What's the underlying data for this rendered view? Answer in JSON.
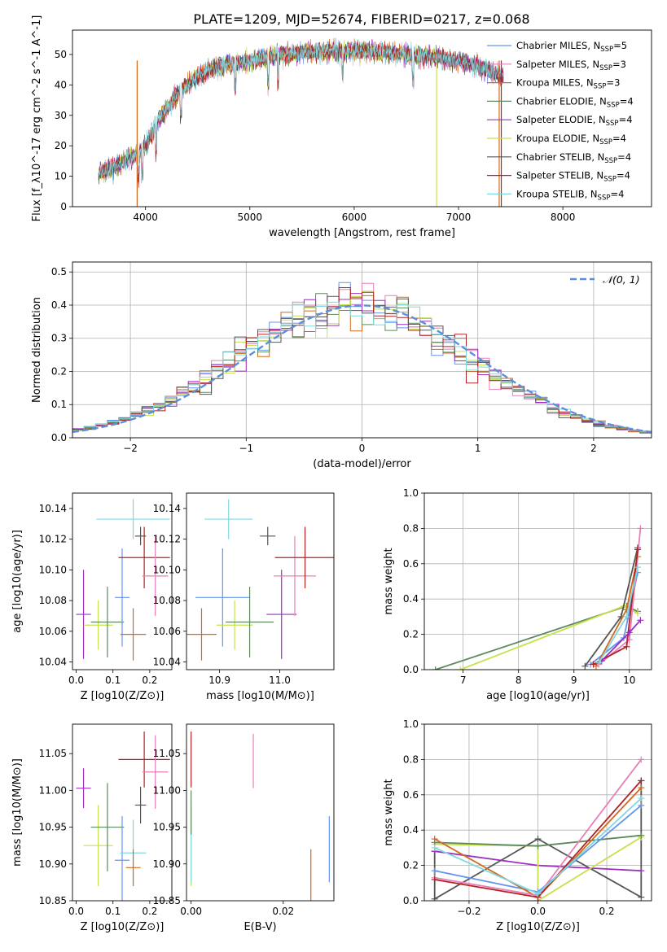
{
  "figure_title": "PLATE=1209, MJD=52674, FIBERID=0217, z=0.068",
  "legend_spectrum": [
    {
      "name": "Chabrier MILES, N",
      "sub": "SSP",
      "tail": "=5",
      "color": "#6495ED"
    },
    {
      "name": "Salpeter MILES, N",
      "sub": "SSP",
      "tail": "=3",
      "color": "#E87FB8"
    },
    {
      "name": "Kroupa MILES, N",
      "sub": "SSP",
      "tail": "=3",
      "color": "#D2691E"
    },
    {
      "name": "Chabrier ELODIE, N",
      "sub": "SSP",
      "tail": "=4",
      "color": "#5C8A5C"
    },
    {
      "name": "Salpeter ELODIE, N",
      "sub": "SSP",
      "tail": "=4",
      "color": "#9B30C0"
    },
    {
      "name": "Kroupa ELODIE, N",
      "sub": "SSP",
      "tail": "=4",
      "color": "#C8E04A"
    },
    {
      "name": "Chabrier STELIB, N",
      "sub": "SSP",
      "tail": "=4",
      "color": "#555555"
    },
    {
      "name": "Salpeter STELIB, N",
      "sub": "SSP",
      "tail": "=4",
      "color": "#B22222"
    },
    {
      "name": "Kroupa STELIB, N",
      "sub": "SSP",
      "tail": "=4",
      "color": "#7FD8E0"
    }
  ],
  "legend_hist": "𝒩(0, 1)",
  "chart_data": [
    {
      "id": "spectrum",
      "type": "line",
      "xlabel": "wavelength [Angstrom, rest frame]",
      "ylabel": "Flux [f_λ10^-17 erg cm^-2 s^-1 A^-1]",
      "xlim": [
        3300,
        8850
      ],
      "ylim": [
        0,
        58
      ],
      "xticks": [
        4000,
        5000,
        6000,
        7000,
        8000
      ],
      "yticks": [
        0,
        10,
        20,
        30,
        40,
        50
      ],
      "continuum_x": [
        3550,
        3700,
        3800,
        3900,
        4000,
        4100,
        4200,
        4300,
        4500,
        4700,
        5000,
        5300,
        5600,
        5900,
        6200,
        6500,
        6800,
        7000,
        7200,
        7400
      ],
      "continuum_y": [
        11,
        13,
        15,
        17,
        20,
        27,
        32,
        37,
        43,
        46,
        48,
        50,
        51,
        51,
        51,
        50,
        49,
        48,
        46,
        43
      ]
    },
    {
      "id": "residual_hist",
      "type": "step",
      "xlabel": "(data-model)/error",
      "ylabel": "Normed distribution",
      "xlim": [
        -2.5,
        2.5
      ],
      "ylim": [
        0,
        0.53
      ],
      "xticks": [
        -2,
        -1,
        0,
        1,
        2
      ],
      "yticks": [
        0.0,
        0.1,
        0.2,
        0.3,
        0.4,
        0.5
      ],
      "grid": true,
      "legend": "top-right"
    },
    {
      "id": "age_vs_Z",
      "type": "errorbar",
      "xlabel": "Z [log10(Z/Z⊙)]",
      "ylabel": "age [log10(age/yr)]",
      "xlim": [
        -0.01,
        0.26
      ],
      "ylim": [
        10.035,
        10.15
      ],
      "xticks": [
        0.0,
        0.1,
        0.2
      ],
      "yticks": [
        10.04,
        10.06,
        10.08,
        10.1,
        10.12,
        10.14
      ],
      "points": [
        {
          "x": 0.02,
          "xerr": 0.02,
          "y": 10.071,
          "yerr": 0.029,
          "color": "#9B30C0"
        },
        {
          "x": 0.06,
          "xerr": 0.04,
          "y": 10.064,
          "yerr": 0.016,
          "color": "#C8E04A"
        },
        {
          "x": 0.085,
          "xerr": 0.045,
          "y": 10.066,
          "yerr": 0.023,
          "color": "#5C8A5C"
        },
        {
          "x": 0.125,
          "xerr": 0.02,
          "y": 10.082,
          "yerr": 0.032,
          "color": "#6495ED"
        },
        {
          "x": 0.155,
          "xerr": 0.035,
          "y": 10.058,
          "yerr": 0.017,
          "color": "#D2691E"
        },
        {
          "x": 0.155,
          "xerr": 0.1,
          "y": 10.133,
          "yerr": 0.013,
          "color": "#7FD8E0"
        },
        {
          "x": 0.175,
          "xerr": 0.015,
          "y": 10.122,
          "yerr": 0.006,
          "color": "#555555"
        },
        {
          "x": 0.185,
          "xerr": 0.07,
          "y": 10.108,
          "yerr": 0.02,
          "color": "#B22222"
        },
        {
          "x": 0.215,
          "xerr": 0.035,
          "y": 10.096,
          "yerr": 0.026,
          "color": "#E87FB8"
        }
      ]
    },
    {
      "id": "age_vs_mass",
      "type": "errorbar",
      "xlabel": "mass [log10(M/M⊙)]",
      "ylabel": "",
      "xlim": [
        10.845,
        11.09
      ],
      "ylim": [
        10.035,
        10.15
      ],
      "xticks": [
        10.9,
        11.0
      ],
      "yticks": [
        10.04,
        10.06,
        10.08,
        10.1,
        10.12,
        10.14
      ],
      "points": [
        {
          "x": 10.87,
          "xerr": 0.025,
          "y": 10.058,
          "yerr": 0.017,
          "color": "#D2691E"
        },
        {
          "x": 10.905,
          "xerr": 0.045,
          "y": 10.082,
          "yerr": 0.032,
          "color": "#6495ED"
        },
        {
          "x": 10.915,
          "xerr": 0.04,
          "y": 10.133,
          "yerr": 0.013,
          "color": "#7FD8E0"
        },
        {
          "x": 10.925,
          "xerr": 0.03,
          "y": 10.064,
          "yerr": 0.016,
          "color": "#C8E04A"
        },
        {
          "x": 10.95,
          "xerr": 0.04,
          "y": 10.066,
          "yerr": 0.023,
          "color": "#5C8A5C"
        },
        {
          "x": 10.98,
          "xerr": 0.013,
          "y": 10.122,
          "yerr": 0.006,
          "color": "#555555"
        },
        {
          "x": 11.003,
          "xerr": 0.025,
          "y": 10.071,
          "yerr": 0.029,
          "color": "#9B30C0"
        },
        {
          "x": 11.025,
          "xerr": 0.035,
          "y": 10.096,
          "yerr": 0.026,
          "color": "#E87FB8"
        },
        {
          "x": 11.042,
          "xerr": 0.05,
          "y": 10.108,
          "yerr": 0.02,
          "color": "#B22222"
        }
      ]
    },
    {
      "id": "massweight_vs_age",
      "type": "line",
      "xlabel": "age [log10(age/yr)]",
      "ylabel": "mass weight",
      "xlim": [
        6.3,
        10.4
      ],
      "ylim": [
        0,
        1
      ],
      "xticks": [
        7,
        8,
        9,
        10
      ],
      "yticks": [
        0.0,
        0.2,
        0.4,
        0.6,
        0.8,
        1.0
      ],
      "grid": true,
      "series": [
        {
          "color": "#5C8A5C",
          "x": [
            6.5,
            9.95,
            10.15
          ],
          "y": [
            0.0,
            0.36,
            0.33
          ]
        },
        {
          "color": "#C8E04A",
          "x": [
            6.95,
            9.9,
            10.15
          ],
          "y": [
            0.0,
            0.36,
            0.32
          ]
        },
        {
          "color": "#555555",
          "x": [
            9.2,
            9.85,
            10.15
          ],
          "y": [
            0.02,
            0.3,
            0.69
          ]
        },
        {
          "color": "#6495ED",
          "x": [
            9.3,
            9.9,
            10.15
          ],
          "y": [
            0.03,
            0.18,
            0.55
          ]
        },
        {
          "color": "#D2691E",
          "x": [
            9.4,
            9.95,
            10.15
          ],
          "y": [
            0.02,
            0.34,
            0.64
          ]
        },
        {
          "color": "#E87FB8",
          "x": [
            9.45,
            10.0,
            10.2
          ],
          "y": [
            0.03,
            0.17,
            0.8
          ]
        },
        {
          "color": "#B22222",
          "x": [
            9.35,
            9.95,
            10.15
          ],
          "y": [
            0.03,
            0.13,
            0.68
          ]
        },
        {
          "color": "#9B30C0",
          "x": [
            9.5,
            10.0,
            10.2
          ],
          "y": [
            0.05,
            0.21,
            0.28
          ]
        },
        {
          "color": "#7FD8E0",
          "x": [
            9.45,
            9.95,
            10.15
          ],
          "y": [
            0.04,
            0.3,
            0.58
          ]
        }
      ]
    },
    {
      "id": "mass_vs_Z",
      "type": "errorbar",
      "xlabel": "Z [log10(Z/Z⊙)]",
      "ylabel": "mass [log10(M/M⊙)]",
      "xlim": [
        -0.01,
        0.26
      ],
      "ylim": [
        10.85,
        11.09
      ],
      "xticks": [
        0.0,
        0.1,
        0.2
      ],
      "yticks": [
        10.85,
        10.9,
        10.95,
        11.0,
        11.05
      ],
      "points": [
        {
          "x": 0.02,
          "xerr": 0.02,
          "y": 11.003,
          "yerr": 0.027,
          "color": "#9B30C0"
        },
        {
          "x": 0.06,
          "xerr": 0.04,
          "y": 10.925,
          "yerr": 0.055,
          "color": "#C8E04A"
        },
        {
          "x": 0.085,
          "xerr": 0.045,
          "y": 10.95,
          "yerr": 0.06,
          "color": "#5C8A5C"
        },
        {
          "x": 0.125,
          "xerr": 0.02,
          "y": 10.905,
          "yerr": 0.06,
          "color": "#6495ED"
        },
        {
          "x": 0.155,
          "xerr": 0.035,
          "y": 10.915,
          "yerr": 0.045,
          "color": "#7FD8E0"
        },
        {
          "x": 0.155,
          "xerr": 0.02,
          "y": 10.895,
          "yerr": 0.025,
          "color": "#D2691E"
        },
        {
          "x": 0.175,
          "xerr": 0.015,
          "y": 10.98,
          "yerr": 0.025,
          "color": "#555555"
        },
        {
          "x": 0.185,
          "xerr": 0.07,
          "y": 11.042,
          "yerr": 0.038,
          "color": "#B22222"
        },
        {
          "x": 0.215,
          "xerr": 0.035,
          "y": 11.025,
          "yerr": 0.05,
          "color": "#E87FB8"
        }
      ]
    },
    {
      "id": "mass_vs_ebv",
      "type": "errorbar",
      "xlabel": "E(B-V)",
      "ylabel": "",
      "xlim": [
        -0.001,
        0.031
      ],
      "ylim": [
        10.85,
        11.09
      ],
      "xticks": [
        0.0,
        0.02
      ],
      "yticks": [
        10.85,
        10.9,
        10.95,
        11.0,
        11.05
      ],
      "points": [
        {
          "x": 0.0,
          "xerr": 0,
          "y": 11.042,
          "yerr": 0.038,
          "color": "#B22222"
        },
        {
          "x": 0.0,
          "xerr": 0,
          "y": 10.925,
          "yerr": 0.055,
          "color": "#C8E04A"
        },
        {
          "x": 0.0,
          "xerr": 0,
          "y": 10.915,
          "yerr": 0.04,
          "color": "#7FD8E0"
        },
        {
          "x": 0.0,
          "xerr": 0,
          "y": 10.97,
          "yerr": 0.03,
          "color": "#5C8A5C"
        },
        {
          "x": 0.0135,
          "xerr": 0,
          "y": 11.04,
          "yerr": 0.037,
          "color": "#E87FB8"
        },
        {
          "x": 0.026,
          "xerr": 0,
          "y": 10.885,
          "yerr": 0.035,
          "color": "#D2691E"
        },
        {
          "x": 0.03,
          "xerr": 0,
          "y": 10.92,
          "yerr": 0.045,
          "color": "#6495ED"
        }
      ]
    },
    {
      "id": "massweight_vs_Z",
      "type": "line",
      "xlabel": "Z [log10(Z/Z⊙)]",
      "ylabel": "mass weight",
      "xlim": [
        -0.33,
        0.33
      ],
      "ylim": [
        0,
        1
      ],
      "xticks": [
        -0.2,
        0.0,
        0.2
      ],
      "yticks": [
        0.0,
        0.2,
        0.4,
        0.6,
        0.8,
        1.0
      ],
      "grid": true,
      "series": [
        {
          "color": "#555555",
          "x": [
            -0.3,
            -0.3,
            0.0,
            0.3,
            0.3
          ],
          "y": [
            0.28,
            0.01,
            0.35,
            0.02,
            0.68
          ]
        },
        {
          "color": "#9B30C0",
          "x": [
            -0.3,
            0.0,
            0.3
          ],
          "y": [
            0.28,
            0.2,
            0.17
          ]
        },
        {
          "color": "#C8E04A",
          "x": [
            -0.3,
            0.0,
            0.0,
            0.3
          ],
          "y": [
            0.32,
            0.31,
            0.0,
            0.36
          ]
        },
        {
          "color": "#5C8A5C",
          "x": [
            -0.3,
            0.0,
            0.3
          ],
          "y": [
            0.33,
            0.31,
            0.37
          ]
        },
        {
          "color": "#6495ED",
          "x": [
            -0.3,
            0.0,
            0.3
          ],
          "y": [
            0.17,
            0.05,
            0.54
          ]
        },
        {
          "color": "#D2691E",
          "x": [
            -0.3,
            0.0,
            0.3
          ],
          "y": [
            0.35,
            0.02,
            0.64
          ]
        },
        {
          "color": "#E87FB8",
          "x": [
            -0.3,
            0.0,
            0.3
          ],
          "y": [
            0.13,
            0.03,
            0.8
          ]
        },
        {
          "color": "#B22222",
          "x": [
            -0.3,
            0.0,
            0.3
          ],
          "y": [
            0.12,
            0.02,
            0.68
          ]
        },
        {
          "color": "#7FD8E0",
          "x": [
            -0.3,
            0.0,
            0.3
          ],
          "y": [
            0.3,
            0.04,
            0.58
          ]
        }
      ]
    }
  ]
}
